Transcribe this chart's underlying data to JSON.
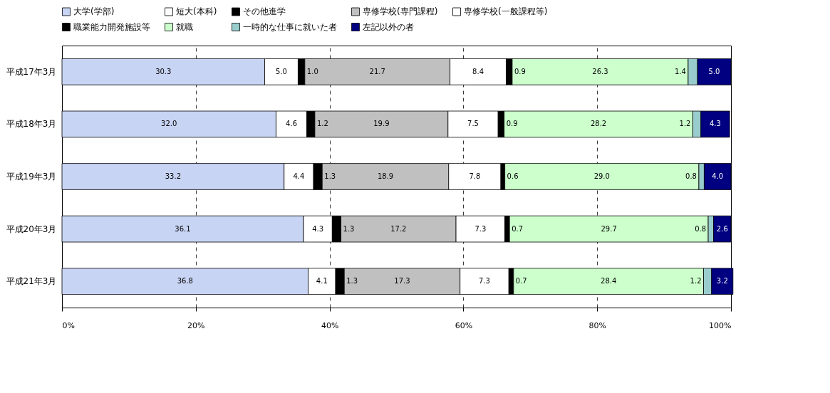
{
  "chart_data": {
    "type": "bar",
    "orientation": "horizontal",
    "stacked": true,
    "grid": "x",
    "legend": "top",
    "categories": [
      "平成17年3月",
      "平成18年3月",
      "平成19年3月",
      "平成20年3月",
      "平成21年3月"
    ],
    "xlim": [
      0,
      100
    ],
    "xticks": [
      {
        "value": 0,
        "label": "0%"
      },
      {
        "value": 20,
        "label": "20%"
      },
      {
        "value": 40,
        "label": "40%"
      },
      {
        "value": 60,
        "label": "60%"
      },
      {
        "value": 80,
        "label": "80%"
      },
      {
        "value": 100,
        "label": "100%"
      }
    ],
    "series": [
      {
        "name": "大学(学部)",
        "color": "#c8d4f4",
        "values": [
          30.3,
          32.0,
          33.2,
          36.1,
          36.8
        ],
        "value_labels": [
          "30.3",
          "32.0",
          "33.2",
          "36.1",
          "36.8"
        ]
      },
      {
        "name": "短大(本科)",
        "color": "#ffffff",
        "values": [
          5.0,
          4.6,
          4.4,
          4.3,
          4.1
        ],
        "value_labels": [
          "5.0",
          "4.6",
          "4.4",
          "4.3",
          "4.1"
        ]
      },
      {
        "name": "その他進学",
        "color": "#000000",
        "values": [
          1.0,
          1.2,
          1.3,
          1.3,
          1.3
        ],
        "value_labels": [
          "1.0",
          "1.2",
          "1.3",
          "1.3",
          "1.3"
        ]
      },
      {
        "name": "専修学校(専門課程)",
        "color": "#c0c0c0",
        "values": [
          21.7,
          19.9,
          18.9,
          17.2,
          17.3
        ],
        "value_labels": [
          "21.7",
          "19.9",
          "18.9",
          "17.2",
          "17.3"
        ]
      },
      {
        "name": "専修学校(一般課程等)",
        "color": "#ffffff",
        "values": [
          8.4,
          7.5,
          7.8,
          7.3,
          7.3
        ],
        "value_labels": [
          "8.4",
          "7.5",
          "7.8",
          "7.3",
          "7.3"
        ]
      },
      {
        "name": "職業能力開発施設等",
        "color": "#000000",
        "values": [
          0.9,
          0.9,
          0.6,
          0.7,
          0.7
        ],
        "value_labels": [
          "0.9",
          "0.9",
          "0.6",
          "0.7",
          "0.7"
        ]
      },
      {
        "name": "就職",
        "color": "#ccffcc",
        "values": [
          26.3,
          28.2,
          29.0,
          29.7,
          28.4
        ],
        "value_labels": [
          "26.3",
          "28.2",
          "29.0",
          "29.7",
          "28.4"
        ]
      },
      {
        "name": "一時的な仕事に就いた者",
        "color": "#99cccc",
        "values": [
          1.4,
          1.2,
          0.8,
          0.8,
          1.2
        ],
        "value_labels": [
          "1.4",
          "1.2",
          "0.8",
          "0.8",
          "1.2"
        ]
      },
      {
        "name": "左記以外の者",
        "color": "#000080",
        "values": [
          5.0,
          4.3,
          4.0,
          2.6,
          3.2
        ],
        "value_labels": [
          "5.0",
          "4.3",
          "4.0",
          "2.6",
          "3.2"
        ]
      }
    ]
  }
}
